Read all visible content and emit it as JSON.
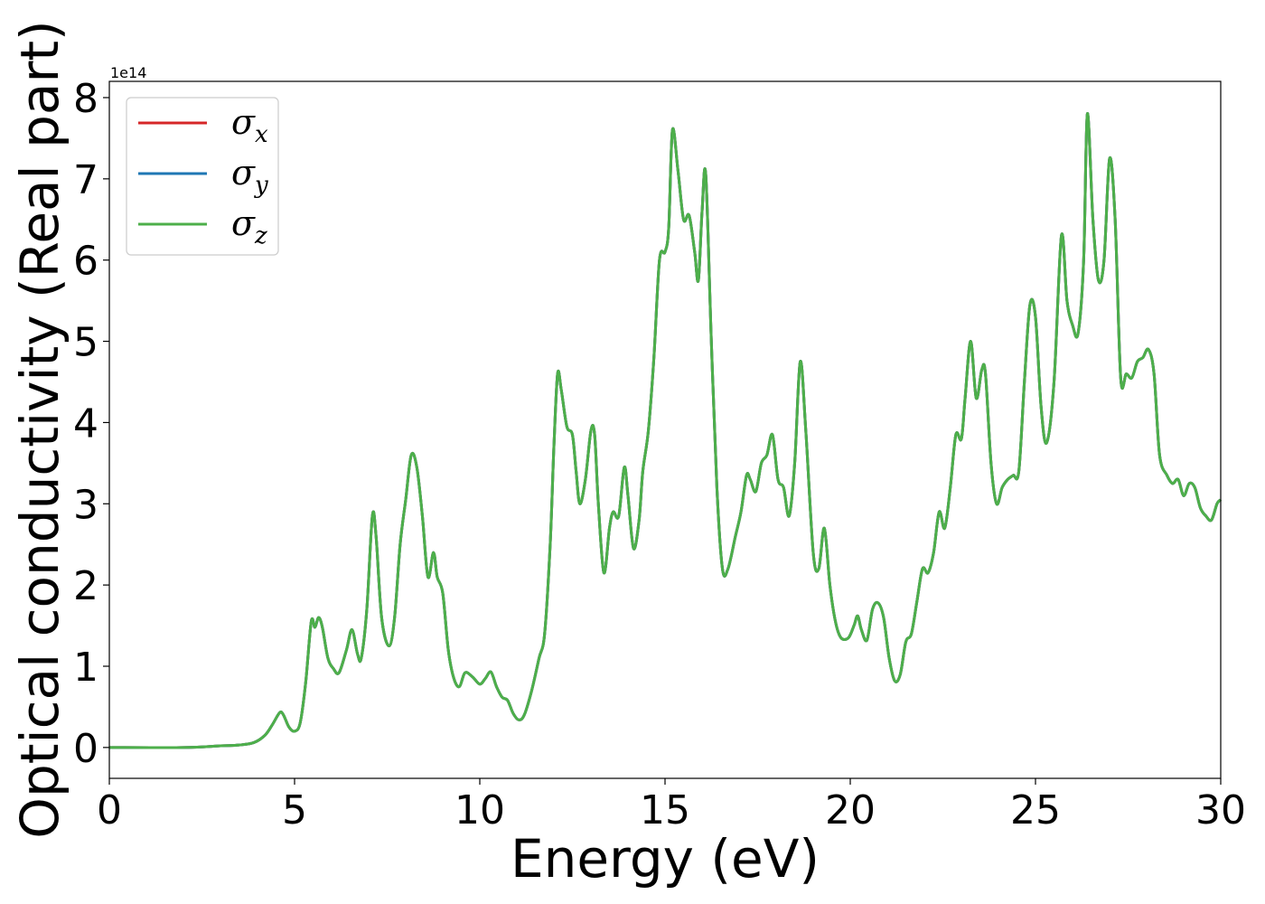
{
  "chart_data": {
    "type": "line",
    "title": "",
    "xlabel": "Energy (eV)",
    "ylabel": "Optical conductivity (Real part)",
    "y_offset_label": "1e14",
    "xlim": [
      0,
      30
    ],
    "ylim": [
      -0.38,
      8.2
    ],
    "x_ticks": [
      0,
      5,
      10,
      15,
      20,
      25,
      30
    ],
    "y_ticks": [
      0,
      1,
      2,
      3,
      4,
      5,
      6,
      7,
      8
    ],
    "grid": false,
    "legend_position": "top-left",
    "legend": [
      {
        "symbol": "σ",
        "sub": "x",
        "color": "#d62728"
      },
      {
        "symbol": "σ",
        "sub": "y",
        "color": "#1f77b4"
      },
      {
        "symbol": "σ",
        "sub": "z",
        "color": "#4daf4a"
      }
    ],
    "series": [
      {
        "sub": "x",
        "color": "#d62728",
        "visible_on_top": false
      },
      {
        "sub": "y",
        "color": "#1f77b4",
        "visible_on_top": false
      },
      {
        "sub": "z",
        "color": "#4daf4a",
        "visible_on_top": true
      }
    ],
    "points": [
      [
        0,
        0
      ],
      [
        2,
        0
      ],
      [
        3,
        0.02
      ],
      [
        3.5,
        0.03
      ],
      [
        3.9,
        0.06
      ],
      [
        4.2,
        0.15
      ],
      [
        4.4,
        0.28
      ],
      [
        4.6,
        0.43
      ],
      [
        4.7,
        0.4
      ],
      [
        4.85,
        0.25
      ],
      [
        5.0,
        0.2
      ],
      [
        5.15,
        0.3
      ],
      [
        5.3,
        0.8
      ],
      [
        5.45,
        1.55
      ],
      [
        5.55,
        1.48
      ],
      [
        5.65,
        1.6
      ],
      [
        5.75,
        1.48
      ],
      [
        5.9,
        1.1
      ],
      [
        6.05,
        0.97
      ],
      [
        6.2,
        0.92
      ],
      [
        6.4,
        1.2
      ],
      [
        6.55,
        1.45
      ],
      [
        6.7,
        1.15
      ],
      [
        6.8,
        1.1
      ],
      [
        6.95,
        1.7
      ],
      [
        7.1,
        2.85
      ],
      [
        7.2,
        2.6
      ],
      [
        7.35,
        1.6
      ],
      [
        7.55,
        1.25
      ],
      [
        7.7,
        1.6
      ],
      [
        7.85,
        2.5
      ],
      [
        8.0,
        3.05
      ],
      [
        8.15,
        3.6
      ],
      [
        8.3,
        3.45
      ],
      [
        8.45,
        2.85
      ],
      [
        8.6,
        2.1
      ],
      [
        8.75,
        2.4
      ],
      [
        8.85,
        2.1
      ],
      [
        9.0,
        1.9
      ],
      [
        9.15,
        1.2
      ],
      [
        9.3,
        0.85
      ],
      [
        9.45,
        0.75
      ],
      [
        9.6,
        0.92
      ],
      [
        9.8,
        0.87
      ],
      [
        10.0,
        0.78
      ],
      [
        10.15,
        0.85
      ],
      [
        10.3,
        0.93
      ],
      [
        10.45,
        0.75
      ],
      [
        10.6,
        0.62
      ],
      [
        10.75,
        0.58
      ],
      [
        10.9,
        0.42
      ],
      [
        11.05,
        0.34
      ],
      [
        11.2,
        0.4
      ],
      [
        11.4,
        0.7
      ],
      [
        11.6,
        1.1
      ],
      [
        11.75,
        1.4
      ],
      [
        11.9,
        2.5
      ],
      [
        12.0,
        3.7
      ],
      [
        12.1,
        4.6
      ],
      [
        12.2,
        4.4
      ],
      [
        12.35,
        3.95
      ],
      [
        12.5,
        3.85
      ],
      [
        12.6,
        3.4
      ],
      [
        12.7,
        3.0
      ],
      [
        12.85,
        3.3
      ],
      [
        13.0,
        3.9
      ],
      [
        13.1,
        3.85
      ],
      [
        13.2,
        3.0
      ],
      [
        13.35,
        2.15
      ],
      [
        13.5,
        2.7
      ],
      [
        13.6,
        2.9
      ],
      [
        13.75,
        2.85
      ],
      [
        13.9,
        3.45
      ],
      [
        14.0,
        3.1
      ],
      [
        14.15,
        2.45
      ],
      [
        14.3,
        2.8
      ],
      [
        14.4,
        3.4
      ],
      [
        14.55,
        3.9
      ],
      [
        14.7,
        4.8
      ],
      [
        14.85,
        6.0
      ],
      [
        15.0,
        6.1
      ],
      [
        15.1,
        6.4
      ],
      [
        15.2,
        7.6
      ],
      [
        15.35,
        7.1
      ],
      [
        15.5,
        6.5
      ],
      [
        15.65,
        6.55
      ],
      [
        15.8,
        6.1
      ],
      [
        15.9,
        5.75
      ],
      [
        16.0,
        6.6
      ],
      [
        16.1,
        7.05
      ],
      [
        16.25,
        5.0
      ],
      [
        16.4,
        3.2
      ],
      [
        16.55,
        2.2
      ],
      [
        16.7,
        2.2
      ],
      [
        16.9,
        2.6
      ],
      [
        17.05,
        2.9
      ],
      [
        17.2,
        3.35
      ],
      [
        17.3,
        3.3
      ],
      [
        17.45,
        3.15
      ],
      [
        17.6,
        3.5
      ],
      [
        17.75,
        3.6
      ],
      [
        17.9,
        3.85
      ],
      [
        18.05,
        3.3
      ],
      [
        18.2,
        3.2
      ],
      [
        18.35,
        2.85
      ],
      [
        18.5,
        3.5
      ],
      [
        18.65,
        4.75
      ],
      [
        18.8,
        3.9
      ],
      [
        19.0,
        2.4
      ],
      [
        19.15,
        2.2
      ],
      [
        19.3,
        2.7
      ],
      [
        19.45,
        2.0
      ],
      [
        19.6,
        1.55
      ],
      [
        19.75,
        1.35
      ],
      [
        19.95,
        1.35
      ],
      [
        20.1,
        1.5
      ],
      [
        20.2,
        1.62
      ],
      [
        20.3,
        1.45
      ],
      [
        20.45,
        1.32
      ],
      [
        20.6,
        1.7
      ],
      [
        20.75,
        1.78
      ],
      [
        20.9,
        1.6
      ],
      [
        21.05,
        1.1
      ],
      [
        21.2,
        0.82
      ],
      [
        21.35,
        0.9
      ],
      [
        21.5,
        1.3
      ],
      [
        21.65,
        1.4
      ],
      [
        21.8,
        1.8
      ],
      [
        21.95,
        2.2
      ],
      [
        22.1,
        2.15
      ],
      [
        22.25,
        2.4
      ],
      [
        22.4,
        2.9
      ],
      [
        22.55,
        2.7
      ],
      [
        22.7,
        3.2
      ],
      [
        22.85,
        3.85
      ],
      [
        23.0,
        3.8
      ],
      [
        23.1,
        4.3
      ],
      [
        23.25,
        5.0
      ],
      [
        23.4,
        4.3
      ],
      [
        23.55,
        4.65
      ],
      [
        23.65,
        4.6
      ],
      [
        23.8,
        3.5
      ],
      [
        23.95,
        3.0
      ],
      [
        24.1,
        3.2
      ],
      [
        24.25,
        3.3
      ],
      [
        24.4,
        3.35
      ],
      [
        24.55,
        3.4
      ],
      [
        24.7,
        4.5
      ],
      [
        24.85,
        5.45
      ],
      [
        25.0,
        5.3
      ],
      [
        25.15,
        4.2
      ],
      [
        25.3,
        3.75
      ],
      [
        25.5,
        4.5
      ],
      [
        25.7,
        6.3
      ],
      [
        25.85,
        5.5
      ],
      [
        26.0,
        5.2
      ],
      [
        26.15,
        5.1
      ],
      [
        26.3,
        6.0
      ],
      [
        26.4,
        7.8
      ],
      [
        26.55,
        6.5
      ],
      [
        26.7,
        5.75
      ],
      [
        26.85,
        6.0
      ],
      [
        27.0,
        7.25
      ],
      [
        27.15,
        6.5
      ],
      [
        27.3,
        4.55
      ],
      [
        27.45,
        4.6
      ],
      [
        27.6,
        4.55
      ],
      [
        27.75,
        4.75
      ],
      [
        27.9,
        4.8
      ],
      [
        28.05,
        4.9
      ],
      [
        28.2,
        4.6
      ],
      [
        28.35,
        3.6
      ],
      [
        28.55,
        3.35
      ],
      [
        28.7,
        3.25
      ],
      [
        28.85,
        3.3
      ],
      [
        29.0,
        3.1
      ],
      [
        29.15,
        3.25
      ],
      [
        29.3,
        3.2
      ],
      [
        29.45,
        2.95
      ],
      [
        29.6,
        2.85
      ],
      [
        29.75,
        2.8
      ],
      [
        29.9,
        3.0
      ],
      [
        30.0,
        3.05
      ]
    ]
  }
}
